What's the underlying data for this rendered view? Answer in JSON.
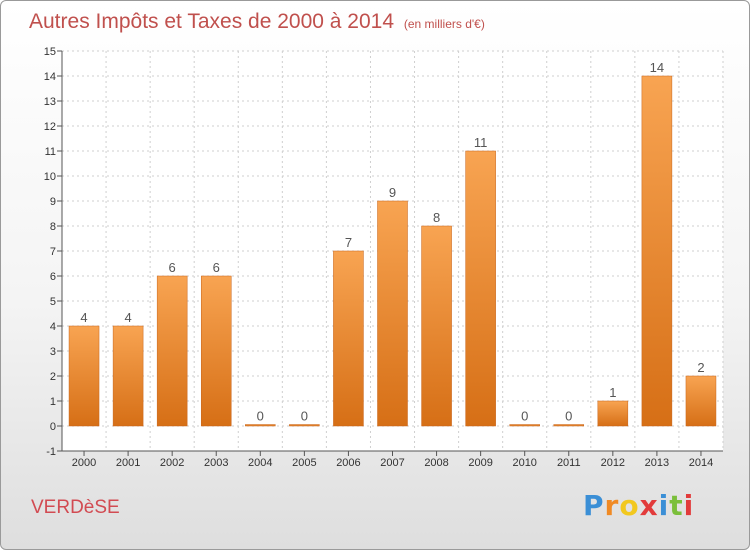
{
  "header": {
    "title": "Autres Impôts et Taxes de 2000 à 2014",
    "unit": "(en milliers d'€)"
  },
  "footer": {
    "city": "VERDèSE",
    "logo_letters": [
      "P",
      "r",
      "o",
      "x",
      "i",
      "t",
      "i"
    ],
    "logo_colors": [
      "#3b8fd6",
      "#f08a24",
      "#f2c81e",
      "#e23b3b",
      "#3b8fd6",
      "#7bbf3b",
      "#e23b3b"
    ]
  },
  "colors": {
    "bar_light": "#f8a452",
    "bar_dark": "#d66f16",
    "grid": "#cfcfcf",
    "title": "#c0504d"
  },
  "chart_data": {
    "type": "bar",
    "title": "Autres Impôts et Taxes de 2000 à 2014",
    "subtitle": "(en milliers d'€)",
    "categories": [
      "2000",
      "2001",
      "2002",
      "2003",
      "2004",
      "2005",
      "2006",
      "2007",
      "2008",
      "2009",
      "2010",
      "2011",
      "2012",
      "2013",
      "2014"
    ],
    "values": [
      4,
      4,
      6,
      6,
      0,
      0,
      7,
      9,
      8,
      11,
      0,
      0,
      1,
      14,
      2
    ],
    "ylim": [
      -1,
      15
    ],
    "yticks": [
      "-1",
      "0",
      "1",
      "2",
      "3",
      "4",
      "5",
      "6",
      "7",
      "8",
      "9",
      "10",
      "11",
      "12",
      "13",
      "14",
      "15"
    ],
    "grid": true
  }
}
